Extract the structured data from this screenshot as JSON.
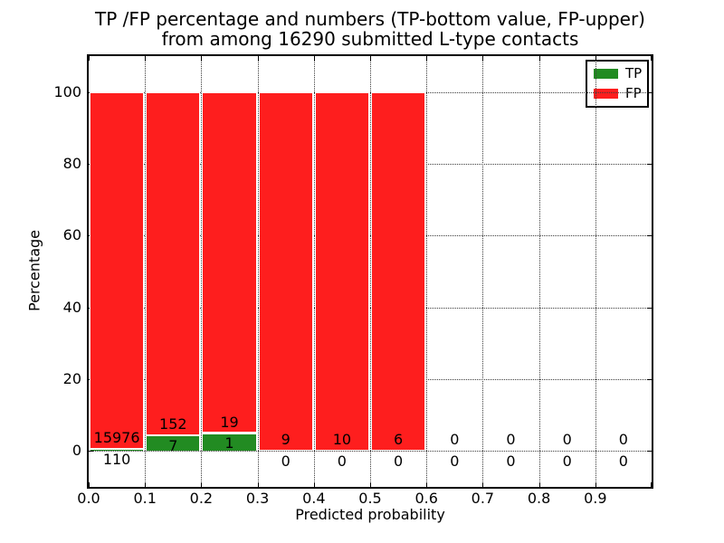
{
  "title": {
    "line1": "TP /FP percentage and numbers (TP-bottom value, FP-upper)",
    "line2": "from among 16290 submitted L-type contacts"
  },
  "axes": {
    "xlabel": "Predicted probability",
    "ylabel": "Percentage",
    "xtick_labels": [
      "0.0",
      "0.1",
      "0.2",
      "0.3",
      "0.4",
      "0.5",
      "0.6",
      "0.7",
      "0.8",
      "0.9"
    ],
    "ytick_labels": [
      "0",
      "20",
      "40",
      "60",
      "80",
      "100"
    ],
    "ytick_values": [
      0,
      20,
      40,
      60,
      80,
      100
    ]
  },
  "legend": {
    "position": "upper right",
    "items": [
      {
        "label": "TP",
        "color": "#228b22"
      },
      {
        "label": "FP",
        "color": "#fe1e1e"
      }
    ]
  },
  "chart_data": {
    "type": "bar",
    "stacked": true,
    "normalized_to_percent": true,
    "title": "TP /FP percentage and numbers (TP-bottom value, FP-upper) from among 16290 submitted L-type contacts",
    "xlabel": "Predicted probability",
    "ylabel": "Percentage",
    "total_submitted": 16290,
    "xlim": [
      0.0,
      1.0
    ],
    "ylim": [
      -10,
      110
    ],
    "grid": true,
    "bin_width": 0.1,
    "bin_starts": [
      0.0,
      0.1,
      0.2,
      0.3,
      0.4,
      0.5,
      0.6,
      0.7,
      0.8,
      0.9
    ],
    "series": [
      {
        "name": "TP",
        "color": "#228b22",
        "counts": [
          110,
          7,
          1,
          0,
          0,
          0,
          0,
          0,
          0,
          0
        ]
      },
      {
        "name": "FP",
        "color": "#fe1e1e",
        "counts": [
          15976,
          152,
          19,
          9,
          10,
          6,
          0,
          0,
          0,
          0
        ]
      }
    ],
    "label_note": "TP count printed at bottom of each bin, FP count printed above it"
  }
}
